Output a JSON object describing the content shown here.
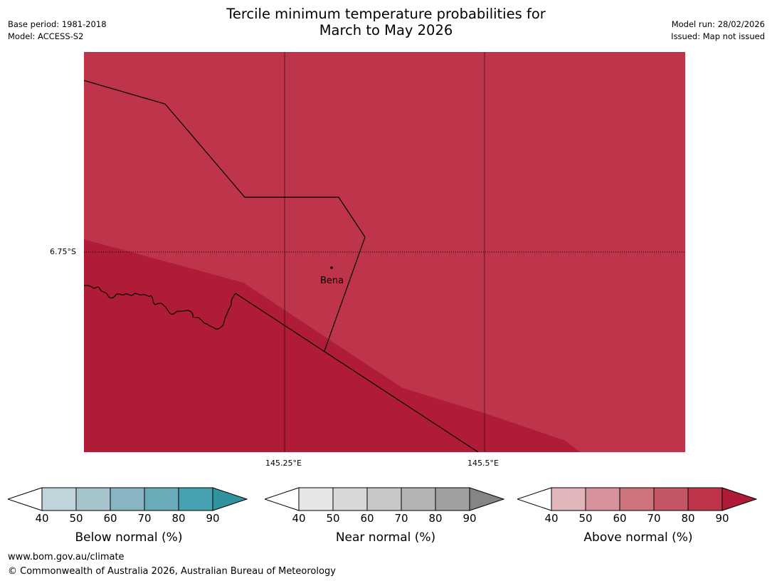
{
  "header": {
    "title_line1": "Tercile minimum temperature probabilities for",
    "title_line2": "March to May 2026",
    "base_period": "Base period: 1981-2018",
    "model": "Model: ACCESS-S2",
    "model_run": "Model run: 28/02/2026",
    "issued": "Issued: Map not issued"
  },
  "map": {
    "latitude_label": "6.75°S",
    "longitude_labels": [
      "145.25°E",
      "145.5°E"
    ],
    "place": "Bena",
    "colors": {
      "region_upper": "#bd344b",
      "region_lower": "#b01c38",
      "gridline": "#000000"
    }
  },
  "legends": [
    {
      "title": "Below normal (%)",
      "ticks": [
        "40",
        "50",
        "60",
        "70",
        "80",
        "90"
      ],
      "colors": [
        "#bfd5db",
        "#a5c4cb",
        "#89b5c2",
        "#6aaab9",
        "#47a1b1"
      ],
      "extend_high": "#31939f"
    },
    {
      "title": "Near normal (%)",
      "ticks": [
        "40",
        "50",
        "60",
        "70",
        "80",
        "90"
      ],
      "colors": [
        "#e6e6e6",
        "#d8d8d8",
        "#c8c8c8",
        "#b4b4b4",
        "#a0a0a0"
      ],
      "extend_high": "#858585"
    },
    {
      "title": "Above normal (%)",
      "ticks": [
        "40",
        "50",
        "60",
        "70",
        "80",
        "90"
      ],
      "colors": [
        "#e2b5bb",
        "#d6939c",
        "#cc737d",
        "#c45564",
        "#bd344b"
      ],
      "extend_high": "#b01c38"
    }
  ],
  "footer": {
    "url": "www.bom.gov.au/climate",
    "copyright": "© Commonwealth of Australia 2026, Australian Bureau of Meteorology"
  }
}
